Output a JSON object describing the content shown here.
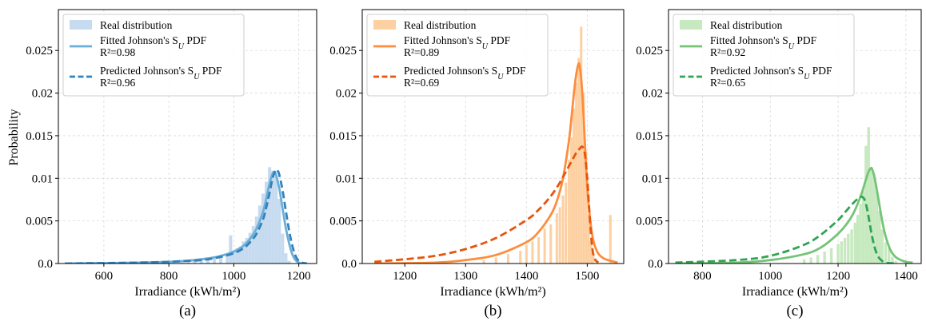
{
  "figure": {
    "panel_tags": [
      "(a)",
      "(b)",
      "(c)"
    ],
    "ylabel": "Probability",
    "xlabel": "Irradiance (kWh/m²)"
  },
  "chart_data": [
    {
      "type": "area",
      "panel": "(a)",
      "xlabel": "Irradiance (kWh/m²)",
      "ylabel": "Probability",
      "xlim": [
        460,
        1255
      ],
      "ylim": [
        0,
        0.0298
      ],
      "xticks": [
        600,
        800,
        1000,
        1200
      ],
      "yticks": [
        0.0,
        0.005,
        0.01,
        0.015,
        0.02,
        0.025
      ],
      "ytick_labels": [
        "0.0",
        "0.005",
        "0.01",
        "0.015",
        "0.02",
        "0.025"
      ],
      "grid": true,
      "legend_position": "top-left",
      "colors": {
        "hist": "#c6dbef",
        "fitted": "#6baed6",
        "predicted": "#3182bd"
      },
      "series": [
        {
          "name": "Real distribution",
          "style": "histogram",
          "bin_width": 10,
          "x": [
            840,
            860,
            880,
            900,
            920,
            940,
            960,
            980,
            990,
            1000,
            1010,
            1020,
            1030,
            1040,
            1050,
            1060,
            1070,
            1080,
            1090,
            1100,
            1110,
            1120,
            1130,
            1140,
            1150,
            1160,
            1170
          ],
          "y": [
            0.0001,
            0.0002,
            0.0003,
            0.0004,
            0.0005,
            0.0006,
            0.0008,
            0.001,
            0.0033,
            0.0015,
            0.0018,
            0.002,
            0.0026,
            0.003,
            0.0036,
            0.0044,
            0.0055,
            0.0068,
            0.0082,
            0.0096,
            0.0113,
            0.0109,
            0.0102,
            0.0076,
            0.0035,
            0.0012,
            0.0003
          ]
        },
        {
          "name": "Fitted Johnson's S_U PDF",
          "r2_label": "R²=0.98",
          "style": "solid",
          "x": [
            480,
            600,
            700,
            800,
            850,
            900,
            950,
            1000,
            1030,
            1050,
            1070,
            1090,
            1100,
            1110,
            1120,
            1125,
            1130,
            1140,
            1150,
            1160,
            1170,
            1180,
            1190,
            1200,
            1210
          ],
          "y": [
            0.0,
            5e-05,
            0.0001,
            0.0002,
            0.0003,
            0.0005,
            0.0008,
            0.0014,
            0.0021,
            0.0029,
            0.0041,
            0.0061,
            0.0076,
            0.0094,
            0.0106,
            0.0107,
            0.0104,
            0.0088,
            0.0065,
            0.0042,
            0.0024,
            0.0011,
            0.0004,
            0.0001,
            0.0
          ]
        },
        {
          "name": "Predicted Johnson's S_U PDF",
          "r2_label": "R²=0.96",
          "style": "dashed",
          "x": [
            480,
            600,
            700,
            800,
            850,
            900,
            950,
            1000,
            1030,
            1050,
            1070,
            1090,
            1100,
            1110,
            1120,
            1130,
            1135,
            1140,
            1150,
            1160,
            1170,
            1180,
            1190,
            1200,
            1210,
            1225
          ],
          "y": [
            0.0,
            5e-05,
            0.0001,
            0.0002,
            0.0003,
            0.0004,
            0.0007,
            0.0012,
            0.0018,
            0.0025,
            0.0035,
            0.0052,
            0.0066,
            0.0083,
            0.0101,
            0.011,
            0.0109,
            0.0104,
            0.0086,
            0.0062,
            0.0039,
            0.0021,
            0.0009,
            0.0003,
            0.0001,
            0.0
          ]
        }
      ]
    },
    {
      "type": "area",
      "panel": "(b)",
      "xlabel": "Irradiance (kWh/m²)",
      "xlim": [
        1130,
        1560
      ],
      "ylim": [
        0,
        0.0298
      ],
      "xticks": [
        1200,
        1300,
        1400,
        1500
      ],
      "yticks": [
        0.0,
        0.005,
        0.01,
        0.015,
        0.02,
        0.025
      ],
      "ytick_labels": [
        "0.0",
        "0.005",
        "0.01",
        "0.015",
        "0.02",
        "0.025"
      ],
      "grid": true,
      "legend_position": "top-left",
      "colors": {
        "hist": "#fdd0a2",
        "fitted": "#fd8d3c",
        "predicted": "#e6550d"
      },
      "series": [
        {
          "name": "Real distribution",
          "style": "histogram",
          "bin_width": 4,
          "x": [
            1330,
            1350,
            1370,
            1390,
            1400,
            1410,
            1420,
            1430,
            1440,
            1450,
            1455,
            1460,
            1465,
            1470,
            1474,
            1478,
            1482,
            1486,
            1490,
            1494,
            1498,
            1502,
            1506,
            1510,
            1538
          ],
          "y": [
            0.0004,
            0.0007,
            0.0011,
            0.0015,
            0.0022,
            0.0026,
            0.0031,
            0.0041,
            0.0046,
            0.0059,
            0.0066,
            0.008,
            0.0095,
            0.0122,
            0.0148,
            0.0182,
            0.0212,
            0.0241,
            0.0278,
            0.02,
            0.0131,
            0.0058,
            0.0026,
            0.0011,
            0.0057
          ]
        },
        {
          "name": "Fitted Johnson's S_U PDF",
          "r2_label": "R²=0.89",
          "style": "solid",
          "x": [
            1150,
            1250,
            1300,
            1350,
            1400,
            1420,
            1440,
            1450,
            1460,
            1470,
            1475,
            1480,
            1485,
            1488,
            1492,
            1496,
            1500,
            1505,
            1510,
            1515,
            1520,
            1530,
            1550
          ],
          "y": [
            0.0,
            0.0001,
            0.0004,
            0.001,
            0.0025,
            0.0037,
            0.0057,
            0.0073,
            0.01,
            0.0145,
            0.0178,
            0.0212,
            0.0233,
            0.023,
            0.0198,
            0.0144,
            0.009,
            0.005,
            0.0027,
            0.0016,
            0.001,
            0.0005,
            0.0001
          ]
        },
        {
          "name": "Predicted Johnson's S_U PDF",
          "r2_label": "R²=0.69",
          "style": "dashed",
          "x": [
            1150,
            1200,
            1250,
            1300,
            1350,
            1400,
            1420,
            1440,
            1455,
            1465,
            1475,
            1482,
            1488,
            1492,
            1496,
            1500,
            1504,
            1508,
            1512,
            1518
          ],
          "y": [
            0.0002,
            0.0005,
            0.0009,
            0.0017,
            0.003,
            0.0051,
            0.0063,
            0.0079,
            0.0095,
            0.0108,
            0.0121,
            0.013,
            0.0135,
            0.0137,
            0.0129,
            0.01,
            0.0056,
            0.002,
            0.0006,
            0.0001
          ]
        }
      ]
    },
    {
      "type": "area",
      "panel": "(c)",
      "xlabel": "Irradiance (kWh/m²)",
      "xlim": [
        700,
        1445
      ],
      "ylim": [
        0,
        0.0298
      ],
      "xticks": [
        800,
        1000,
        1200,
        1400
      ],
      "yticks": [
        0.0,
        0.005,
        0.01,
        0.015,
        0.02,
        0.025
      ],
      "ytick_labels": [
        "0.0",
        "0.005",
        "0.01",
        "0.015",
        "0.02",
        "0.025"
      ],
      "grid": true,
      "legend_position": "top-left",
      "colors": {
        "hist": "#c7e9c0",
        "fitted": "#74c476",
        "predicted": "#31a354"
      },
      "series": [
        {
          "name": "Real distribution",
          "style": "histogram",
          "bin_width": 8,
          "x": [
            1100,
            1120,
            1140,
            1160,
            1180,
            1200,
            1210,
            1220,
            1230,
            1240,
            1250,
            1258,
            1266,
            1274,
            1282,
            1290,
            1298,
            1306,
            1314,
            1322,
            1330,
            1340,
            1350,
            1360,
            1370
          ],
          "y": [
            0.0005,
            0.0007,
            0.001,
            0.0014,
            0.0018,
            0.0023,
            0.0026,
            0.003,
            0.0035,
            0.004,
            0.0048,
            0.0057,
            0.007,
            0.0085,
            0.0138,
            0.016,
            0.011,
            0.0105,
            0.0085,
            0.0062,
            0.004,
            0.0025,
            0.0018,
            0.0008,
            0.0003
          ]
        },
        {
          "name": "Fitted Johnson's S_U PDF",
          "r2_label": "R²=0.92",
          "style": "solid",
          "x": [
            720,
            900,
            1000,
            1100,
            1150,
            1200,
            1230,
            1250,
            1270,
            1280,
            1290,
            1297,
            1300,
            1305,
            1310,
            1320,
            1330,
            1340,
            1350,
            1360,
            1375,
            1400,
            1420
          ],
          "y": [
            0.0,
            0.0001,
            0.0004,
            0.0011,
            0.0019,
            0.0035,
            0.0049,
            0.0063,
            0.0083,
            0.0096,
            0.0108,
            0.0112,
            0.0111,
            0.0105,
            0.0096,
            0.0073,
            0.005,
            0.0032,
            0.002,
            0.0012,
            0.0006,
            0.0002,
            0.0001
          ]
        },
        {
          "name": "Predicted Johnson's S_U PDF",
          "r2_label": "R²=0.65",
          "style": "dashed",
          "x": [
            720,
            900,
            1000,
            1100,
            1150,
            1200,
            1220,
            1240,
            1255,
            1265,
            1272,
            1278,
            1285,
            1292,
            1300,
            1310,
            1320,
            1330,
            1340,
            1350,
            1365
          ],
          "y": [
            0.0001,
            0.0004,
            0.0009,
            0.0022,
            0.0034,
            0.0051,
            0.006,
            0.0069,
            0.0075,
            0.0078,
            0.0078,
            0.0075,
            0.0065,
            0.005,
            0.0032,
            0.0016,
            0.0007,
            0.0003,
            0.0001,
            5e-05,
            0.0
          ]
        }
      ]
    }
  ]
}
